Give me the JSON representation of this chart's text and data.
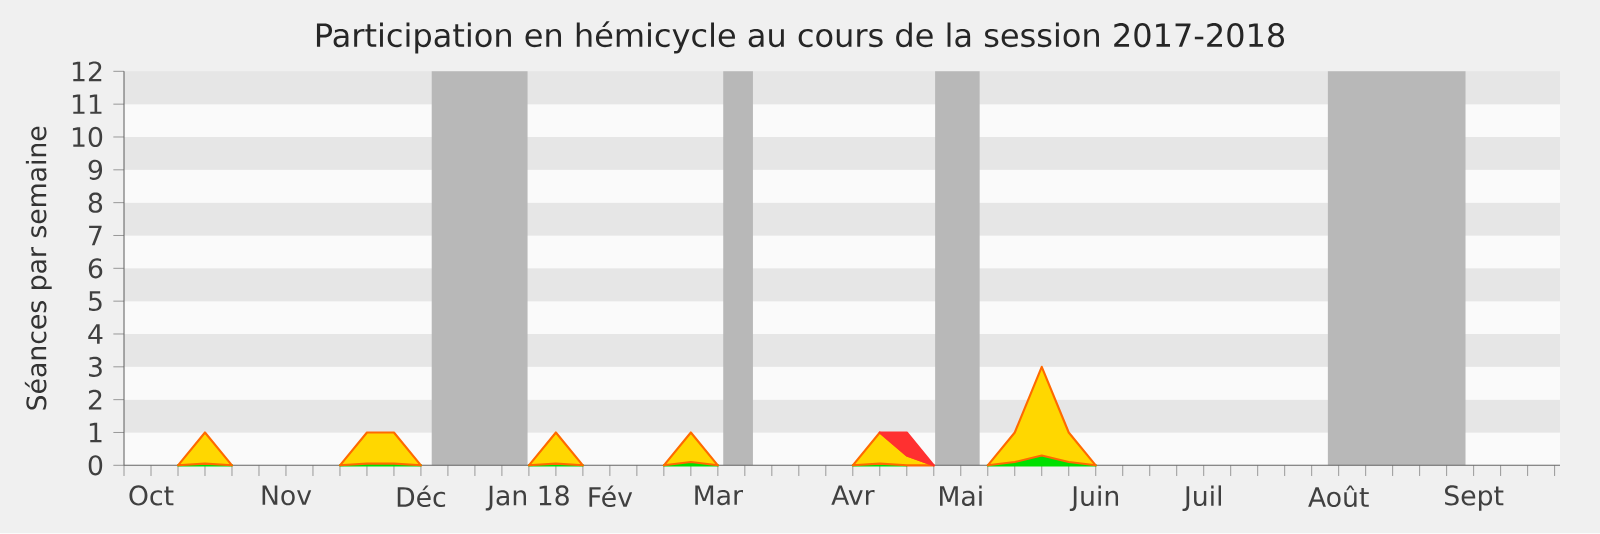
{
  "chart_data": {
    "type": "area",
    "title": "Participation en hémicycle au cours de la session 2017-2018",
    "ylabel": "Séances par semaine",
    "stacked": true,
    "marker": "none",
    "categories": [
      null,
      "Oct",
      null,
      null,
      null,
      null,
      "Nov",
      null,
      null,
      null,
      null,
      "Déc",
      null,
      null,
      null,
      "Jan 18",
      null,
      null,
      "Fév",
      null,
      null,
      null,
      "Mar",
      null,
      null,
      null,
      null,
      "Avr",
      null,
      null,
      null,
      "Mai",
      null,
      null,
      null,
      null,
      "Juin",
      null,
      null,
      null,
      "Juil",
      null,
      null,
      null,
      null,
      "Août",
      null,
      null,
      null,
      null,
      "Sept",
      null,
      null,
      null
    ],
    "series": [
      {
        "color": "#00e000",
        "values": [
          null,
          null,
          0,
          0.05,
          0,
          null,
          null,
          null,
          0,
          0.05,
          0.05,
          0,
          null,
          null,
          null,
          0,
          0.05,
          0,
          null,
          null,
          0,
          0.1,
          0,
          null,
          null,
          null,
          null,
          0,
          0.05,
          0,
          null,
          null,
          0,
          0.1,
          0.3,
          0.1,
          0,
          null,
          null,
          null,
          null,
          null,
          null,
          null,
          null,
          null,
          null,
          null,
          null,
          null,
          null,
          null,
          null,
          null
        ]
      },
      {
        "color": "#ffd700",
        "values": [
          null,
          null,
          0,
          0.95,
          0,
          null,
          null,
          null,
          0,
          0.95,
          0.95,
          0,
          null,
          null,
          null,
          0,
          0.95,
          0,
          null,
          null,
          0,
          0.9,
          0,
          null,
          null,
          null,
          null,
          0,
          0.95,
          0.3,
          0,
          null,
          0,
          0.9,
          2.7,
          0.9,
          0,
          null,
          null,
          null,
          null,
          null,
          null,
          null,
          null,
          null,
          null,
          null,
          null,
          null,
          null,
          null,
          null,
          null
        ]
      },
      {
        "color": "#ff3030",
        "values": [
          null,
          null,
          null,
          null,
          null,
          null,
          null,
          null,
          null,
          null,
          null,
          null,
          null,
          null,
          null,
          null,
          null,
          null,
          null,
          null,
          null,
          null,
          null,
          null,
          null,
          null,
          null,
          null,
          0,
          0.7,
          0,
          null,
          null,
          null,
          null,
          null,
          null,
          null,
          null,
          null,
          null,
          null,
          null,
          null,
          null,
          null,
          null,
          null,
          null,
          null,
          null,
          null,
          null,
          null
        ]
      }
    ],
    "ylim": [
      0,
      12
    ],
    "yticks": [
      0,
      1,
      2,
      3,
      4,
      5,
      6,
      7,
      8,
      9,
      10,
      11,
      12
    ]
  }
}
